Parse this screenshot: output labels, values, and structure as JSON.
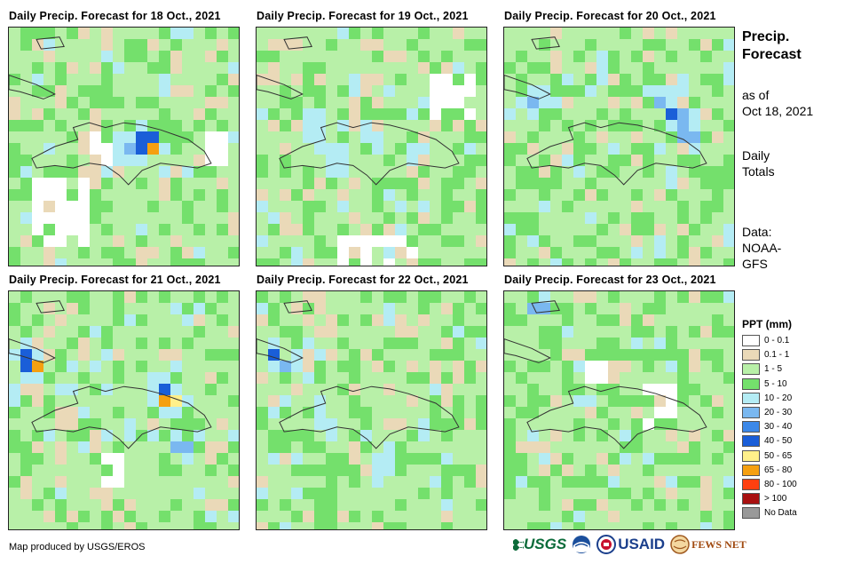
{
  "panels": [
    {
      "title": "Daily Precip. Forecast for 18 Oct., 2021",
      "seed": 11,
      "hot": [
        [
          0.62,
          0.47,
          "orange"
        ],
        [
          0.6,
          0.45,
          "dblue"
        ],
        [
          0.58,
          0.47,
          "dblue"
        ],
        [
          0.52,
          0.5,
          "mblue"
        ],
        [
          0.55,
          0.55,
          "lblue"
        ]
      ],
      "white": [
        [
          0.12,
          0.6,
          0.22,
          0.3
        ],
        [
          0.35,
          0.45,
          0.18,
          0.12
        ],
        [
          0.85,
          0.45,
          0.1,
          0.12
        ]
      ]
    },
    {
      "title": "Daily Precip. Forecast for 19 Oct., 2021",
      "seed": 23,
      "hot": [
        [
          0.35,
          0.55,
          "lblue"
        ],
        [
          0.5,
          0.45,
          "lblue"
        ],
        [
          0.7,
          0.5,
          "lblue"
        ],
        [
          0.25,
          0.4,
          "lblue"
        ]
      ],
      "white": [
        [
          0.75,
          0.2,
          0.25,
          0.2
        ],
        [
          0.35,
          0.85,
          0.35,
          0.15
        ]
      ]
    },
    {
      "title": "Daily Precip. Forecast for 20 Oct., 2021",
      "seed": 37,
      "hot": [
        [
          0.72,
          0.35,
          "dblue"
        ],
        [
          0.76,
          0.38,
          "mblue"
        ],
        [
          0.68,
          0.3,
          "mblue"
        ],
        [
          0.12,
          0.3,
          "mblue"
        ],
        [
          0.8,
          0.45,
          "mblue"
        ]
      ],
      "white": []
    },
    {
      "title": "Daily Precip. Forecast for 21 Oct., 2021",
      "seed": 41,
      "hot": [
        [
          0.1,
          0.3,
          "orange"
        ],
        [
          0.08,
          0.28,
          "dblue"
        ],
        [
          0.7,
          0.44,
          "orange"
        ],
        [
          0.66,
          0.4,
          "dblue"
        ],
        [
          0.72,
          0.46,
          "yellow"
        ],
        [
          0.75,
          0.65,
          "mblue"
        ]
      ],
      "white": [
        [
          0.42,
          0.68,
          0.1,
          0.12
        ]
      ]
    },
    {
      "title": "Daily Precip. Forecast for 22 Oct., 2021",
      "seed": 53,
      "hot": [
        [
          0.12,
          0.3,
          "mblue"
        ],
        [
          0.08,
          0.25,
          "dblue"
        ],
        [
          0.55,
          0.7,
          "lblue"
        ],
        [
          0.3,
          0.55,
          "lblue"
        ]
      ],
      "white": []
    },
    {
      "title": "Daily Precip. Forecast for 23 Oct., 2021",
      "seed": 67,
      "hot": [
        [
          0.15,
          0.05,
          "mblue"
        ]
      ],
      "white": [
        [
          0.62,
          0.4,
          0.12,
          0.15
        ],
        [
          0.35,
          0.28,
          0.08,
          0.1
        ]
      ]
    }
  ],
  "sidebar": {
    "title_line1": "Precip.",
    "title_line2": "Forecast",
    "asof_line1": "as of",
    "asof_line2": "Oct 18, 2021",
    "totals_line1": "Daily",
    "totals_line2": "Totals",
    "data_line1": "Data:",
    "data_line2": "NOAA-",
    "data_line3": "GFS"
  },
  "legend": {
    "title": "PPT (mm)",
    "items": [
      {
        "label": "0 - 0.1",
        "color": "#ffffff"
      },
      {
        "label": "0.1 - 1",
        "color": "#ead9b8"
      },
      {
        "label": "1 - 5",
        "color": "#b8f0a8"
      },
      {
        "label": "5 - 10",
        "color": "#74e06c"
      },
      {
        "label": "10 - 20",
        "color": "#b4ecf4"
      },
      {
        "label": "20 - 30",
        "color": "#7ab8f0"
      },
      {
        "label": "30 - 40",
        "color": "#3c88e8"
      },
      {
        "label": "40 - 50",
        "color": "#1a5ed8"
      },
      {
        "label": "50 - 65",
        "color": "#fff08a"
      },
      {
        "label": "65 - 80",
        "color": "#f5a010"
      },
      {
        "label": "80 - 100",
        "color": "#ff4010"
      },
      {
        "label": "> 100",
        "color": "#a81010"
      },
      {
        "label": "No Data",
        "color": "#999999"
      }
    ]
  },
  "credit": "Map produced by USGS/EROS",
  "logos": {
    "usgs": "USGS",
    "usaid": "USAID",
    "fewsnet": "FEWS NET"
  }
}
